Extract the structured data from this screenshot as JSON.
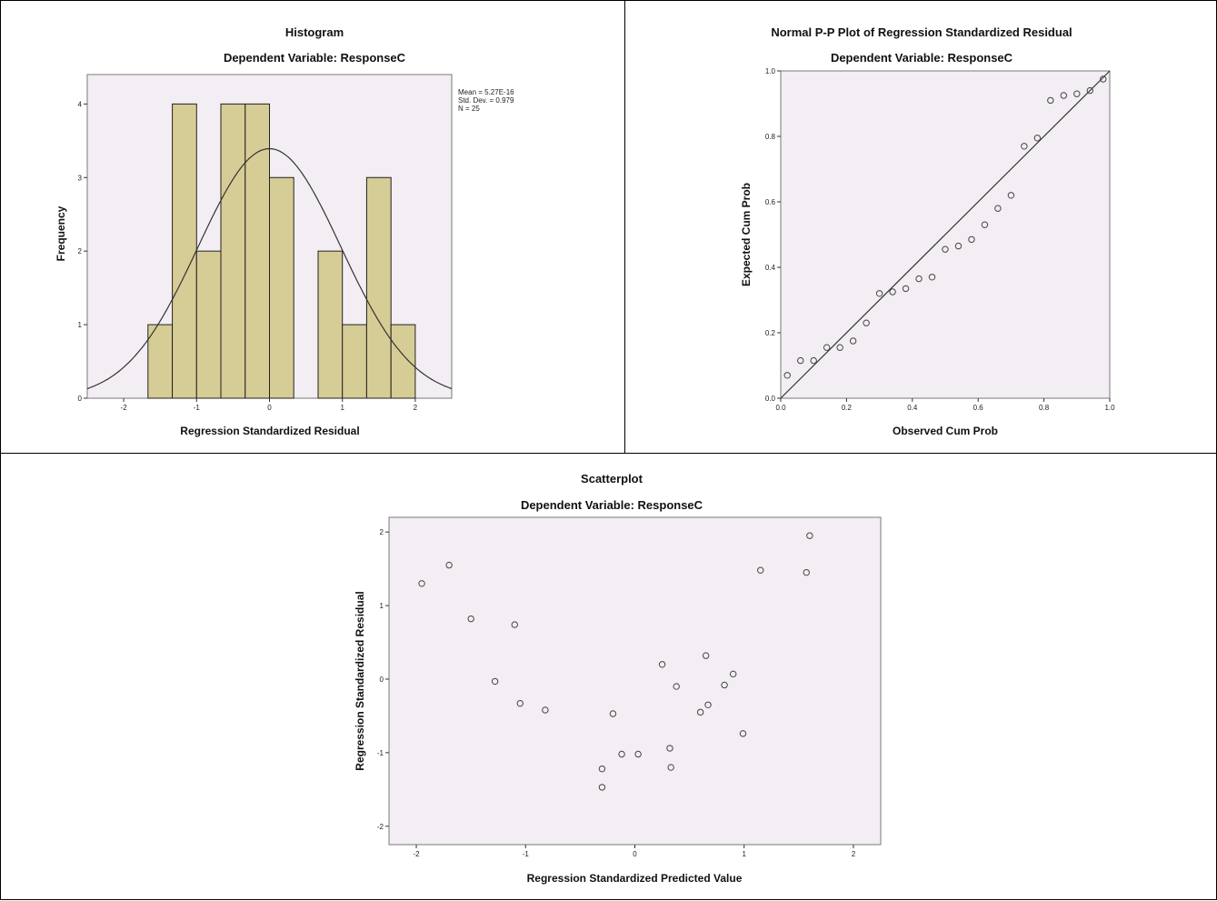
{
  "colors": {
    "plot_bg": "#f3eef3",
    "bar_fill": "#d6cc95",
    "bar_stroke": "#222222",
    "line": "#333333",
    "marker": "#444444",
    "frame": "#7a7a7a"
  },
  "chart_data": [
    {
      "type": "bar",
      "subtype": "histogram",
      "title": "Histogram",
      "subtitle": "Dependent Variable: ResponseC",
      "xlabel": "Regression Standardized Residual",
      "ylabel": "Frequency",
      "xlim": [
        -2.5,
        2.5
      ],
      "ylim": [
        0,
        4.4
      ],
      "xticks": [
        "-2",
        "-1",
        "0",
        "1",
        "2"
      ],
      "yticks": [
        "0",
        "1",
        "2",
        "3",
        "4"
      ],
      "bin_width": 0.333,
      "bins": [
        {
          "x0": -1.667,
          "x1": -1.333,
          "count": 1
        },
        {
          "x0": -1.333,
          "x1": -1.0,
          "count": 4
        },
        {
          "x0": -1.0,
          "x1": -0.667,
          "count": 2
        },
        {
          "x0": -0.667,
          "x1": -0.333,
          "count": 4
        },
        {
          "x0": -0.333,
          "x1": 0.0,
          "count": 4
        },
        {
          "x0": 0.0,
          "x1": 0.333,
          "count": 3
        },
        {
          "x0": 0.333,
          "x1": 0.667,
          "count": 0
        },
        {
          "x0": 0.667,
          "x1": 1.0,
          "count": 2
        },
        {
          "x0": 1.0,
          "x1": 1.333,
          "count": 1
        },
        {
          "x0": 1.333,
          "x1": 1.667,
          "count": 3
        },
        {
          "x0": 1.667,
          "x1": 2.0,
          "count": 1
        }
      ],
      "normal_curve": {
        "mean": 0,
        "sd": 0.979,
        "n": 25
      },
      "stats": [
        "Mean = 5.27E-16",
        "Std. Dev. = 0.979",
        "N = 25"
      ],
      "grid": false,
      "legend": "top-right"
    },
    {
      "type": "scatter",
      "subtype": "p-p plot",
      "title": "Normal P-P Plot of Regression Standardized Residual",
      "subtitle": "Dependent Variable: ResponseC",
      "xlabel": "Observed Cum Prob",
      "ylabel": "Expected Cum Prob",
      "xlim": [
        0,
        1.0
      ],
      "ylim": [
        0,
        1.0
      ],
      "xticks": [
        "0.0",
        "0.2",
        "0.4",
        "0.6",
        "0.8",
        "1.0"
      ],
      "yticks": [
        "0.0",
        "0.2",
        "0.4",
        "0.6",
        "0.8",
        "1.0"
      ],
      "reference_line": [
        [
          0,
          0
        ],
        [
          1,
          1
        ]
      ],
      "points": [
        [
          0.02,
          0.07
        ],
        [
          0.06,
          0.115
        ],
        [
          0.1,
          0.115
        ],
        [
          0.14,
          0.155
        ],
        [
          0.18,
          0.155
        ],
        [
          0.22,
          0.175
        ],
        [
          0.26,
          0.23
        ],
        [
          0.3,
          0.32
        ],
        [
          0.34,
          0.325
        ],
        [
          0.38,
          0.335
        ],
        [
          0.42,
          0.365
        ],
        [
          0.46,
          0.37
        ],
        [
          0.5,
          0.455
        ],
        [
          0.54,
          0.465
        ],
        [
          0.58,
          0.485
        ],
        [
          0.62,
          0.53
        ],
        [
          0.66,
          0.58
        ],
        [
          0.7,
          0.62
        ],
        [
          0.74,
          0.77
        ],
        [
          0.78,
          0.795
        ],
        [
          0.82,
          0.91
        ],
        [
          0.86,
          0.925
        ],
        [
          0.9,
          0.93
        ],
        [
          0.94,
          0.94
        ],
        [
          0.98,
          0.975
        ]
      ],
      "grid": false
    },
    {
      "type": "scatter",
      "title": "Scatterplot",
      "subtitle": "Dependent Variable: ResponseC",
      "xlabel": "Regression Standardized Predicted Value",
      "ylabel": "Regression Standardized Residual",
      "xlim": [
        -2.25,
        2.25
      ],
      "ylim": [
        -2.25,
        2.2
      ],
      "xticks": [
        "-2",
        "-1",
        "0",
        "1",
        "2"
      ],
      "yticks": [
        "-2",
        "-1",
        "0",
        "1",
        "2"
      ],
      "points": [
        [
          -1.95,
          1.3
        ],
        [
          -1.7,
          1.55
        ],
        [
          -1.5,
          0.82
        ],
        [
          -1.1,
          0.74
        ],
        [
          -1.28,
          -0.03
        ],
        [
          -1.05,
          -0.33
        ],
        [
          -0.82,
          -0.42
        ],
        [
          -0.3,
          -1.22
        ],
        [
          -0.3,
          -1.47
        ],
        [
          -0.2,
          -0.47
        ],
        [
          -0.12,
          -1.02
        ],
        [
          0.03,
          -1.02
        ],
        [
          0.25,
          0.2
        ],
        [
          0.32,
          -0.94
        ],
        [
          0.33,
          -1.2
        ],
        [
          0.38,
          -0.1
        ],
        [
          0.6,
          -0.45
        ],
        [
          0.65,
          0.32
        ],
        [
          0.67,
          -0.35
        ],
        [
          0.82,
          -0.08
        ],
        [
          0.9,
          0.07
        ],
        [
          0.99,
          -0.74
        ],
        [
          1.15,
          1.48
        ],
        [
          1.57,
          1.45
        ],
        [
          1.6,
          1.95
        ]
      ],
      "grid": false
    }
  ]
}
